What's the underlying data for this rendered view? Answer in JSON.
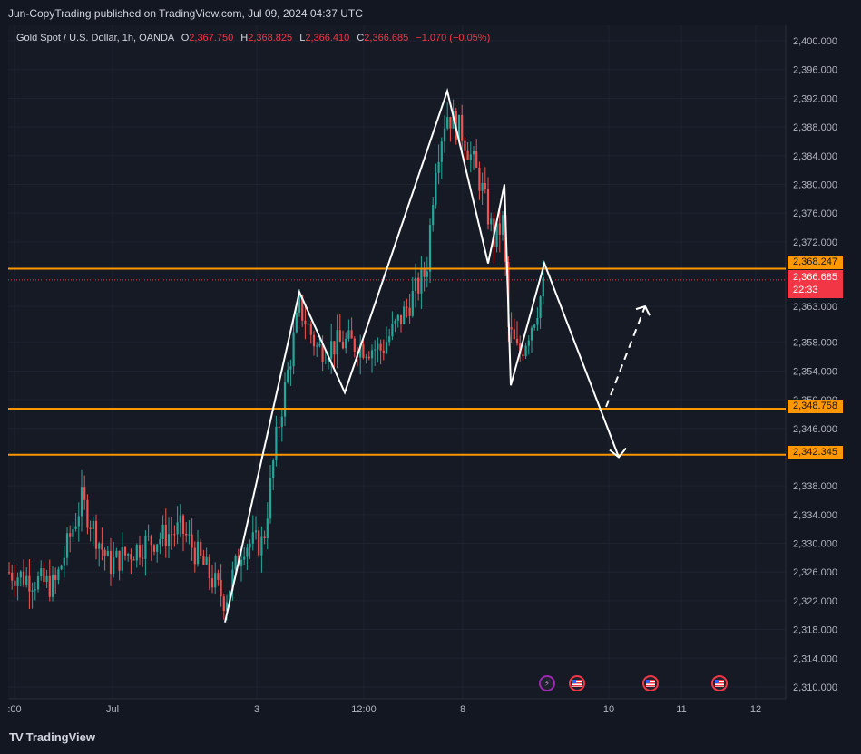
{
  "header": {
    "published": "Jun-CopyTrading published on TradingView.com, Jul 09, 2024 04:37 UTC"
  },
  "legend": {
    "symbol": "Gold Spot / U.S. Dollar, 1h, OANDA",
    "o_label": "O",
    "o": "2,367.750",
    "h_label": "H",
    "h": "2,368.825",
    "l_label": "L",
    "l": "2,366.410",
    "c_label": "C",
    "c": "2,366.685",
    "change": "−1.070 (−0.05%)"
  },
  "price_tags": {
    "level1": "2,368.247",
    "current": "2,366.685",
    "countdown": "22:33",
    "level2": "2,348.758",
    "level3": "2,342.345"
  },
  "brand": {
    "name": "TradingView",
    "logo": "TV"
  },
  "events": [
    {
      "icon": "lightning-icon",
      "glyph": "⚡"
    },
    {
      "icon": "us-flag-icon",
      "glyph": ""
    },
    {
      "icon": "us-flag-icon",
      "glyph": ""
    },
    {
      "icon": "us-flag-icon",
      "glyph": ""
    }
  ],
  "colors": {
    "up": "#26a69a",
    "down": "#ef5350",
    "level": "#ff9800",
    "price": "#f23645",
    "bg": "#161a25"
  },
  "chart_data": {
    "type": "candlestick",
    "y_ticks": [
      "2,400.000",
      "2,396.000",
      "2,392.000",
      "2,388.000",
      "2,384.000",
      "2,380.000",
      "2,376.000",
      "2,372.000",
      "2,363.000",
      "2,358.000",
      "2,354.000",
      "2,350.000",
      "2,346.000",
      "2,338.000",
      "2,334.000",
      "2,330.000",
      "2,326.000",
      "2,322.000",
      "2,318.000",
      "2,314.000",
      "2,310.000"
    ],
    "x_ticks": [
      ":00",
      "Jul",
      "3",
      "12:00",
      "8",
      "10",
      "11",
      "12"
    ],
    "ylim": [
      2308,
      2404
    ],
    "horizontal_levels": [
      2368.247,
      2348.758,
      2342.345
    ],
    "current_price": 2366.685,
    "zigzag": [
      [
        0,
        2319
      ],
      [
        1,
        2365
      ],
      [
        2,
        2351
      ],
      [
        3,
        2393
      ],
      [
        4,
        2369
      ],
      [
        5,
        2380
      ],
      [
        6,
        2352
      ],
      [
        7,
        2369
      ],
      [
        8,
        2342
      ]
    ],
    "projection_dashed": [
      [
        8,
        2349
      ],
      [
        9,
        2363
      ]
    ]
  }
}
